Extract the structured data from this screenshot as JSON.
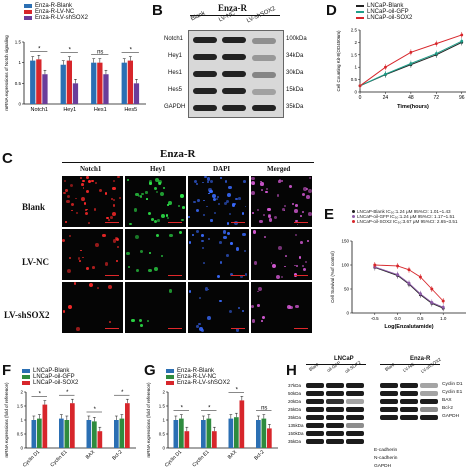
{
  "panel_letters": {
    "c": "C",
    "e": "E",
    "f": "F",
    "g": "G",
    "h": "H"
  },
  "panel_a": {
    "legend": [
      "Enza-R-Blank",
      "Enza-R-LV-NC",
      "Enza-R-LV-shSOX2"
    ],
    "colors": [
      "#2b6fb3",
      "#d7262b",
      "#6a3d9a"
    ]
  },
  "panel_b": {
    "header": "Enza-R",
    "lanes": [
      "Blank",
      "LV-NC",
      "LV-shSOX2"
    ],
    "bands": [
      {
        "name": "Notch1",
        "kda": "100kDa"
      },
      {
        "name": "Hey1",
        "kda": "34kDa"
      },
      {
        "name": "Hes1",
        "kda": "30kDa"
      },
      {
        "name": "Hes5",
        "kda": "15kDa"
      },
      {
        "name": "GAPDH",
        "kda": "35kDa"
      }
    ]
  },
  "panel_d": {
    "legend": [
      "LNCaP-Blank",
      "LNCaP-oil-GFP",
      "LNCaP-oil-SOX2"
    ],
    "xlabel": "Time(hours)",
    "ylabel": "Cell Counting Kit-8(OD450nm)",
    "colors": [
      "#222222",
      "#1f9e89",
      "#d7262b"
    ]
  },
  "panel_c": {
    "header": "Enza-R",
    "columns": [
      "Notch1",
      "Hey1",
      "DAPI",
      "Merged"
    ],
    "rows": [
      "Blank",
      "LV-NC",
      "LV-shSOX2"
    ]
  },
  "panel_e": {
    "legend": [
      "LNCaP-Blank    IC₅₀:1.24 μM  95%CI: 1.01~1.43",
      "LNCaP-oil-GFP  IC₅₀:1.24 μM  95%CI: 1.17~1.51",
      "LNCaP-oil-SOX2 IC₅₀:3.67 μM  95%CI: 2.65~3.51"
    ],
    "xlabel": "Log(Enzalutamide)",
    "ylabel": "Cell Survival (%of control)",
    "colors": [
      "#222222",
      "#8d5ba8",
      "#d7262b"
    ]
  },
  "panel_f": {
    "legend": [
      "LNCaP-Blank",
      "LNCaP-oil-GFP",
      "LNCaP-oil-SOX2"
    ],
    "ylabel": "mRNA expressions (fold of reference)"
  },
  "panel_g": {
    "legend": [
      "Enza-R-Blank",
      "Enza-R-LV-NC",
      "Enza-R-LV-shSOX2"
    ],
    "ylabel": "mRNA expressions (fold of reference)"
  },
  "panel_h": {
    "left_header": "LNCaP",
    "right_header": "Enza-R",
    "left_lanes": [
      "Blank",
      "oil-GFP",
      "oil-SOX2"
    ],
    "right_lanes": [
      "Blank",
      "LV-NC",
      "LV-shSOX2"
    ],
    "kda": [
      "37kDa",
      "50kDa",
      "20kDa",
      "25kDa",
      "35kDa",
      "135kDa",
      "150kDa",
      "35kDa"
    ],
    "proteins_right": [
      "Cyclin D1",
      "Cyclin E1",
      "BAX",
      "Bcl-2",
      "GAPDH"
    ],
    "proteins_bottom": [
      "E-cadherin",
      "N-cadherin",
      "GAPDH"
    ]
  },
  "chart_data": [
    {
      "type": "bar",
      "categories": [
        "Notch1",
        "Hey1",
        "Hes1",
        "Hes5"
      ],
      "series": [
        {
          "name": "Enza-R-Blank",
          "values": [
            1.05,
            0.95,
            1.0,
            1.0
          ]
        },
        {
          "name": "Enza-R-LV-NC",
          "values": [
            1.08,
            1.05,
            1.0,
            1.05
          ]
        },
        {
          "name": "Enza-R-LV-shSOX2",
          "values": [
            0.72,
            0.5,
            0.72,
            0.5
          ]
        }
      ],
      "ylabel": "mRNA expressions of Notch signaling",
      "significance": [
        "*",
        "*",
        "ns",
        "*"
      ],
      "ylim": [
        0,
        1.5
      ]
    },
    {
      "type": "line",
      "x": [
        0,
        24,
        48,
        72,
        96
      ],
      "series": [
        {
          "name": "LNCaP-Blank",
          "values": [
            0.25,
            0.7,
            1.1,
            1.5,
            2.0
          ]
        },
        {
          "name": "LNCaP-oil-GFP",
          "values": [
            0.25,
            0.72,
            1.15,
            1.55,
            2.05
          ]
        },
        {
          "name": "LNCaP-oil-SOX2",
          "values": [
            0.25,
            1.0,
            1.6,
            1.95,
            2.3
          ]
        }
      ],
      "xlabel": "Time(hours)",
      "ylabel": "Cell Counting Kit-8(OD450nm)",
      "xlim": [
        0,
        100
      ],
      "ylim": [
        0,
        2.5
      ]
    },
    {
      "type": "scatter",
      "x": [
        -0.5,
        0.0,
        0.25,
        0.5,
        0.75,
        1.0
      ],
      "series": [
        {
          "name": "LNCaP-Blank",
          "values": [
            95,
            78,
            60,
            38,
            20,
            10
          ]
        },
        {
          "name": "LNCaP-oil-GFP",
          "values": [
            96,
            80,
            62,
            40,
            22,
            12
          ]
        },
        {
          "name": "LNCaP-oil-SOX2",
          "values": [
            100,
            98,
            90,
            75,
            50,
            25
          ]
        }
      ],
      "xlabel": "Log(Enzalutamide)",
      "ylabel": "Cell Survival (%of control)",
      "ylim": [
        0,
        150
      ]
    },
    {
      "type": "bar",
      "categories": [
        "Cyclin D1",
        "Cyclin E1",
        "BAX",
        "Bcl-2"
      ],
      "series": [
        {
          "name": "LNCaP-Blank",
          "values": [
            1.0,
            1.05,
            1.0,
            1.0
          ]
        },
        {
          "name": "LNCaP-oil-GFP",
          "values": [
            1.05,
            1.0,
            0.95,
            1.05
          ]
        },
        {
          "name": "LNCaP-oil-SOX2",
          "values": [
            1.55,
            1.6,
            0.6,
            1.6
          ]
        }
      ],
      "ylabel": "mRNA expressions (fold of reference)",
      "significance": [
        "*",
        "*",
        "*",
        "*"
      ],
      "ylim": [
        0,
        2
      ]
    },
    {
      "type": "bar",
      "categories": [
        "Cyclin D1",
        "Cyclin E1",
        "BAX",
        "Bcl-2"
      ],
      "series": [
        {
          "name": "Enza-R-Blank",
          "values": [
            1.0,
            1.0,
            1.05,
            1.0
          ]
        },
        {
          "name": "Enza-R-LV-NC",
          "values": [
            1.05,
            1.05,
            1.1,
            1.05
          ]
        },
        {
          "name": "Enza-R-LV-shSOX2",
          "values": [
            0.6,
            0.6,
            1.7,
            0.7
          ]
        }
      ],
      "ylabel": "mRNA expressions (fold of reference)",
      "significance": [
        "*",
        "*",
        "*",
        "ns"
      ],
      "ylim": [
        0,
        2
      ]
    }
  ]
}
